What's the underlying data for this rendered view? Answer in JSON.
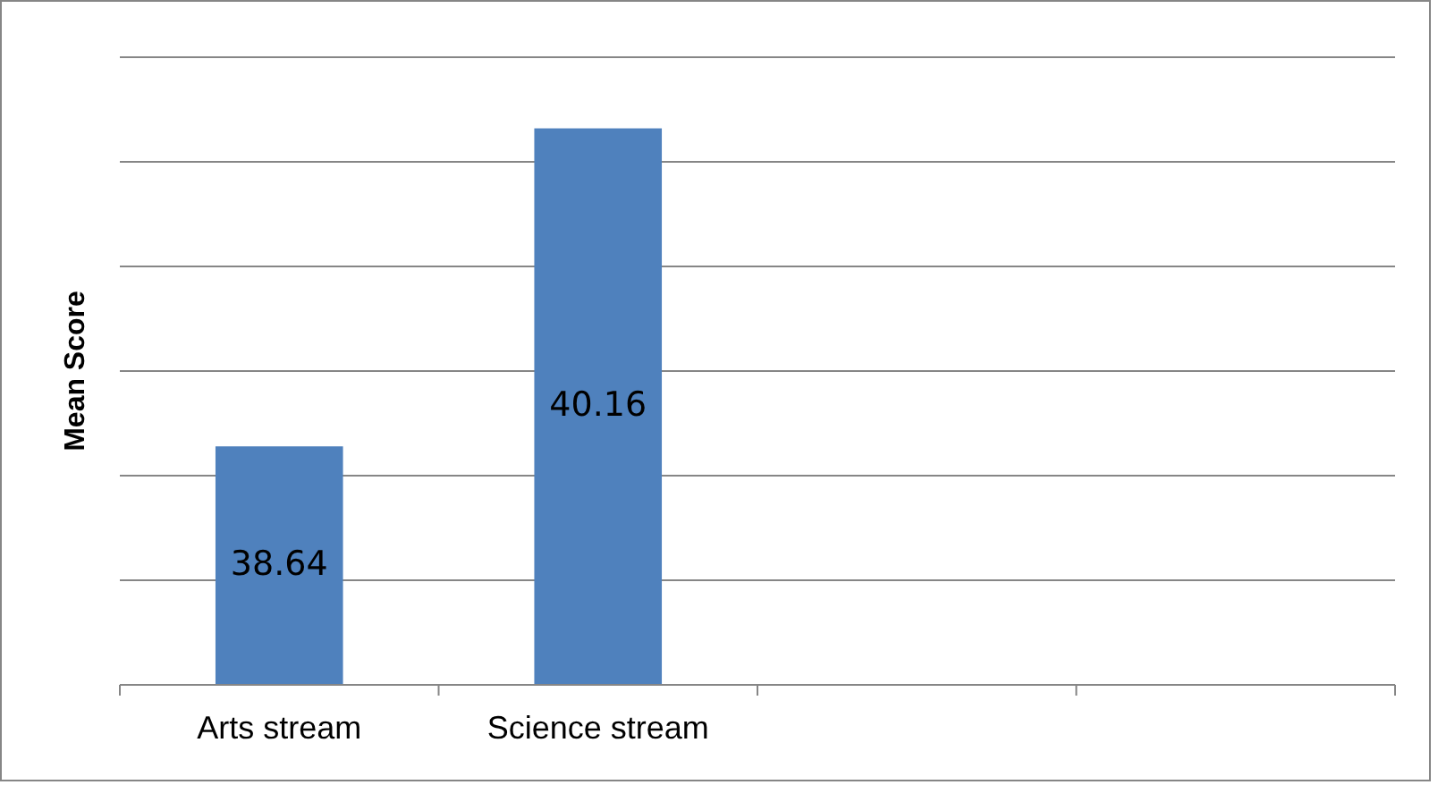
{
  "chart_data": {
    "type": "bar",
    "ylabel": "Mean Score",
    "categories": [
      "Arts stream",
      "Science stream",
      null,
      null
    ],
    "values": [
      38.64,
      40.16,
      null,
      null
    ],
    "color": "#4f81bd",
    "ylim": [
      37.5,
      40.5
    ],
    "yticks": [
      {
        "value": 37.5,
        "label": null
      },
      {
        "value": 38,
        "label": null
      },
      {
        "value": 38.5,
        "label": null
      },
      {
        "value": 39,
        "label": null
      },
      {
        "value": 39.5,
        "label": null
      },
      {
        "value": 40,
        "label": null
      },
      {
        "value": 40.5,
        "label": null
      }
    ],
    "tick_labels": "x",
    "grid": "y",
    "data_labels": true
  }
}
